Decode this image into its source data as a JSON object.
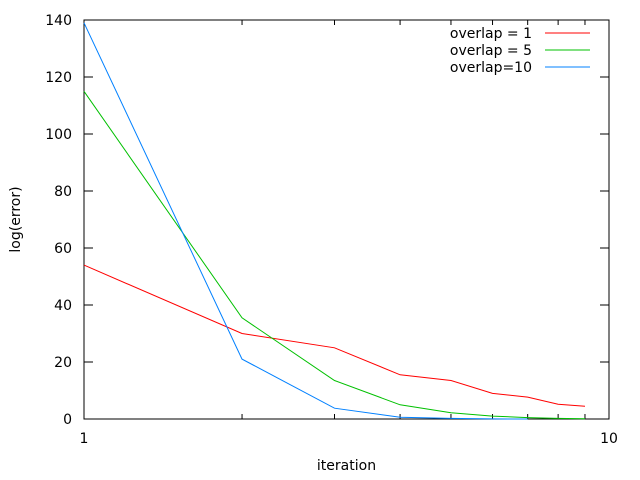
{
  "chart_data": {
    "type": "line",
    "xlabel": "iteration",
    "ylabel": "log(error)",
    "xscale": "log",
    "xlim": [
      1,
      10
    ],
    "ylim": [
      0,
      140
    ],
    "xticks": [
      1,
      10
    ],
    "yticks": [
      0,
      20,
      40,
      60,
      80,
      100,
      120,
      140
    ],
    "grid": false,
    "legend_position": "top-right",
    "series": [
      {
        "name": "overlap = 1",
        "color": "#ff0000",
        "x": [
          1,
          2,
          3,
          4,
          5,
          6,
          7,
          8,
          9
        ],
        "y": [
          54,
          30,
          25,
          15.5,
          13.5,
          9,
          7.7,
          5.2,
          4.5
        ]
      },
      {
        "name": "overlap = 5",
        "color": "#00c000",
        "x": [
          1,
          2,
          3,
          4,
          5,
          6,
          7,
          8,
          9
        ],
        "y": [
          115,
          35.5,
          13.5,
          5,
          2.2,
          1,
          0.5,
          0.2,
          0.1
        ]
      },
      {
        "name": "overlap=10",
        "color": "#0080ff",
        "x": [
          1,
          2,
          3,
          4,
          5,
          6,
          7
        ],
        "y": [
          139,
          21,
          3.8,
          0.6,
          0.2,
          0.05,
          0
        ]
      }
    ]
  }
}
